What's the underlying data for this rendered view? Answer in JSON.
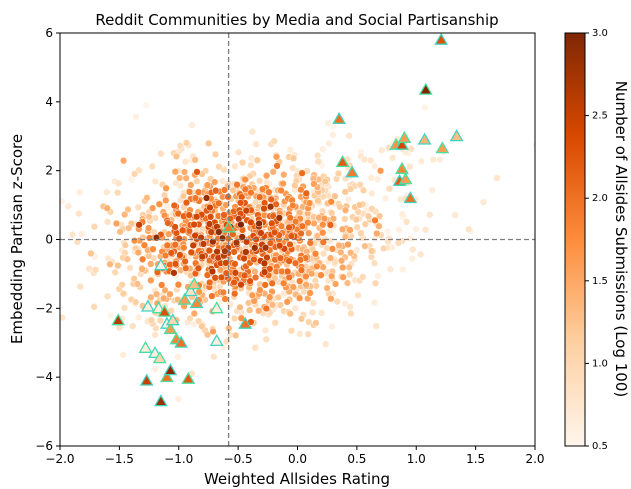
{
  "chart_data": {
    "type": "scatter",
    "title": "Reddit Communities by Media and Social Partisanship",
    "xlabel": "Weighted Allsides Rating",
    "ylabel": "Embedding Partisan z-Score",
    "xlim": [
      -2.0,
      2.0
    ],
    "ylim": [
      -6,
      6
    ],
    "xticks": [
      "−2.0",
      "−1.5",
      "−1.0",
      "−0.5",
      "0.0",
      "0.5",
      "1.0",
      "1.5",
      "2.0"
    ],
    "yticks": [
      "−6",
      "−4",
      "−2",
      "0",
      "2",
      "4",
      "6"
    ],
    "reference_lines": {
      "x": -0.58,
      "y": 0,
      "style": "dashed",
      "color": "#7f7f7f"
    },
    "colorbar": {
      "label": "Number of Allsides Submissions (Log 100)",
      "range": [
        0.5,
        3.0
      ],
      "ticks": [
        "0.5",
        "1.0",
        "1.5",
        "2.0",
        "2.5",
        "3.0"
      ],
      "colormap": [
        "#fff5eb",
        "#fdd0a2",
        "#fd8d3c",
        "#d94801",
        "#7f2704"
      ]
    },
    "cluster": {
      "center": [
        -0.55,
        0.0
      ],
      "spread": [
        0.5,
        1.2
      ],
      "count": 1500
    },
    "highlighted_marker_edges": [
      "#3fd4c0",
      "#48e0a0"
    ],
    "highlighted": [
      {
        "x": 1.21,
        "y": 5.8,
        "c": 2.3
      },
      {
        "x": 1.08,
        "y": 4.35,
        "c": 3.0
      },
      {
        "x": 0.35,
        "y": 3.5,
        "c": 2.0
      },
      {
        "x": 0.38,
        "y": 2.25,
        "c": 2.2
      },
      {
        "x": 0.46,
        "y": 1.95,
        "c": 1.9
      },
      {
        "x": 0.83,
        "y": 2.75,
        "c": 1.7
      },
      {
        "x": 0.88,
        "y": 2.75,
        "c": 2.4
      },
      {
        "x": 0.9,
        "y": 2.95,
        "c": 1.6
      },
      {
        "x": 1.07,
        "y": 2.9,
        "c": 1.4
      },
      {
        "x": 1.22,
        "y": 2.65,
        "c": 1.6
      },
      {
        "x": 1.34,
        "y": 3.0,
        "c": 1.3
      },
      {
        "x": 0.88,
        "y": 2.05,
        "c": 1.8
      },
      {
        "x": 0.86,
        "y": 1.7,
        "c": 2.2
      },
      {
        "x": 0.91,
        "y": 1.75,
        "c": 1.6
      },
      {
        "x": 0.95,
        "y": 1.2,
        "c": 2.0
      },
      {
        "x": -1.51,
        "y": -2.35,
        "c": 2.6
      },
      {
        "x": -1.26,
        "y": -1.95,
        "c": 0.6
      },
      {
        "x": -1.17,
        "y": -2.0,
        "c": 0.6
      },
      {
        "x": -1.15,
        "y": -0.75,
        "c": 0.6
      },
      {
        "x": -1.12,
        "y": -2.1,
        "c": 2.3
      },
      {
        "x": -1.1,
        "y": -2.45,
        "c": 0.6
      },
      {
        "x": -1.07,
        "y": -2.6,
        "c": 1.6
      },
      {
        "x": -1.05,
        "y": -2.35,
        "c": 1.0
      },
      {
        "x": -1.02,
        "y": -2.9,
        "c": 1.8
      },
      {
        "x": -0.98,
        "y": -3.0,
        "c": 2.0
      },
      {
        "x": -0.95,
        "y": -1.75,
        "c": 1.6
      },
      {
        "x": -0.9,
        "y": -1.5,
        "c": 0.8
      },
      {
        "x": -0.87,
        "y": -1.3,
        "c": 1.3
      },
      {
        "x": -0.85,
        "y": -1.85,
        "c": 1.8
      },
      {
        "x": -0.68,
        "y": -2.0,
        "c": 0.6
      },
      {
        "x": -0.68,
        "y": -2.95,
        "c": 0.6
      },
      {
        "x": -0.58,
        "y": 0.35,
        "c": 1.9
      },
      {
        "x": -0.44,
        "y": -2.45,
        "c": 2.0
      },
      {
        "x": -1.28,
        "y": -3.15,
        "c": 0.6
      },
      {
        "x": -1.2,
        "y": -3.3,
        "c": 0.6
      },
      {
        "x": -1.16,
        "y": -3.45,
        "c": 1.0
      },
      {
        "x": -1.27,
        "y": -4.1,
        "c": 2.5
      },
      {
        "x": -1.1,
        "y": -4.0,
        "c": 2.0
      },
      {
        "x": -1.07,
        "y": -3.8,
        "c": 2.9
      },
      {
        "x": -0.92,
        "y": -4.05,
        "c": 2.2
      },
      {
        "x": -1.15,
        "y": -4.7,
        "c": 2.8
      }
    ]
  }
}
